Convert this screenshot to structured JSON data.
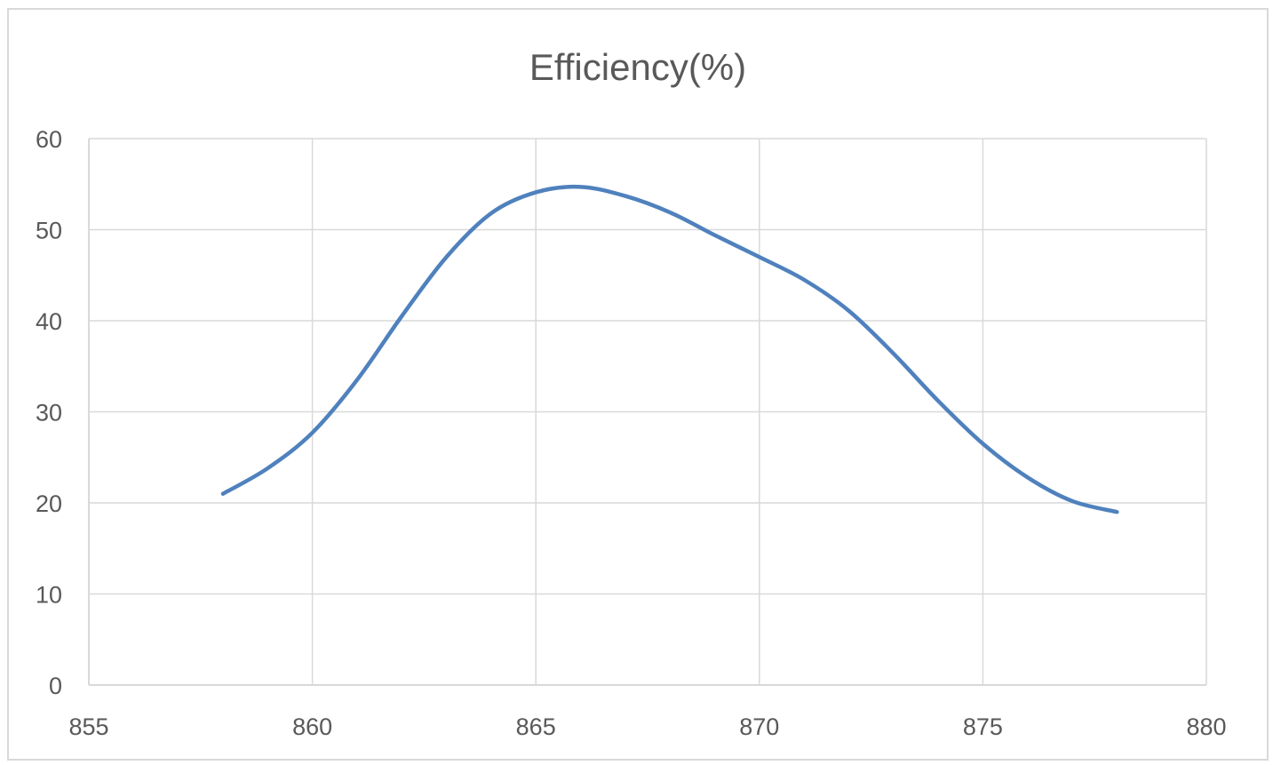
{
  "chart_data": {
    "type": "line",
    "title": "Efficiency(%)",
    "xlabel": "",
    "ylabel": "",
    "xlim": [
      855,
      880
    ],
    "ylim": [
      0,
      60
    ],
    "x_ticks": [
      "855",
      "860",
      "865",
      "870",
      "875",
      "880"
    ],
    "y_ticks": [
      "0",
      "10",
      "20",
      "30",
      "40",
      "50",
      "60"
    ],
    "grid": true,
    "legend": "none",
    "smooth": true,
    "series": [
      {
        "color": "#4f81bd",
        "x": [
          858,
          859,
          860,
          861,
          862,
          863,
          864,
          865,
          866,
          867,
          868,
          869,
          870,
          871,
          872,
          873,
          874,
          875,
          876,
          877,
          878
        ],
        "y": [
          21,
          23.8,
          27.7,
          33.5,
          40.5,
          47,
          51.8,
          54.1,
          54.7,
          53.7,
          51.9,
          49.4,
          47,
          44.5,
          41.1,
          36.4,
          31.2,
          26.5,
          22.8,
          20.2,
          19
        ]
      }
    ]
  }
}
